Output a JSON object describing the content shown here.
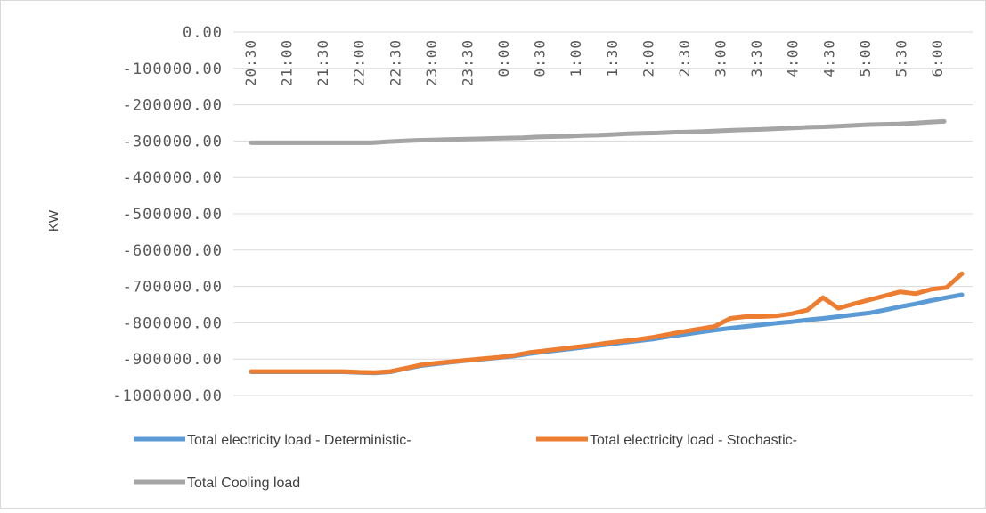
{
  "chart_data": {
    "type": "line",
    "title": "",
    "xlabel": "",
    "ylabel": "KW",
    "ylim": [
      -1000000,
      0
    ],
    "yticks": [
      0,
      -100000,
      -200000,
      -300000,
      -400000,
      -500000,
      -600000,
      -700000,
      -800000,
      -900000,
      -1000000
    ],
    "ytick_labels": [
      "0.00",
      "-100000.00",
      "-200000.00",
      "-300000.00",
      "-400000.00",
      "-500000.00",
      "-600000.00",
      "-700000.00",
      "-800000.00",
      "-900000.00",
      "-1000000.00"
    ],
    "xtick_labels": [
      "20:30",
      "21:00",
      "21:30",
      "22:00",
      "22:30",
      "23:00",
      "23:30",
      "0:00",
      "0:30",
      "1:00",
      "1:30",
      "2:00",
      "2:30",
      "3:00",
      "3:30",
      "4:00",
      "4:30",
      "5:00",
      "5:30",
      "6:00"
    ],
    "grid": true,
    "legend_position": "bottom",
    "series": [
      {
        "name": "Total electricity load - Deterministic-",
        "color": "#5B9BD5",
        "values": [
          -935000,
          -935000,
          -935000,
          -935000,
          -935000,
          -935000,
          -935000,
          -937000,
          -938000,
          -935000,
          -926000,
          -918000,
          -913000,
          -908000,
          -904000,
          -900000,
          -896000,
          -892000,
          -885000,
          -880000,
          -875000,
          -870000,
          -865000,
          -860000,
          -855000,
          -850000,
          -845000,
          -838000,
          -832000,
          -826000,
          -820000,
          -815000,
          -810000,
          -806000,
          -801000,
          -797000,
          -792000,
          -788000,
          -783000,
          -778000,
          -773000,
          -765000,
          -756000,
          -748000,
          -739000,
          -731000,
          -723000
        ]
      },
      {
        "name": "Total electricity load - Stochastic-",
        "color": "#ED7D31",
        "values": [
          -934000,
          -934000,
          -934000,
          -934000,
          -934000,
          -934000,
          -934000,
          -936000,
          -937000,
          -934000,
          -925000,
          -916000,
          -911000,
          -907000,
          -903000,
          -899000,
          -895000,
          -890000,
          -882000,
          -877000,
          -872000,
          -867000,
          -862000,
          -856000,
          -851000,
          -846000,
          -840000,
          -832000,
          -824000,
          -817000,
          -810000,
          -788000,
          -783000,
          -783000,
          -781000,
          -775000,
          -765000,
          -731000,
          -760000,
          -748000,
          -737000,
          -726000,
          -715000,
          -720000,
          -708000,
          -703000,
          -665000
        ]
      },
      {
        "name": "Total Cooling load",
        "color": "#A5A5A5",
        "values": [
          -305000,
          -305000,
          -305000,
          -305000,
          -305000,
          -305000,
          -305000,
          -305000,
          -305000,
          -302000,
          -300000,
          -298000,
          -297000,
          -296000,
          -295000,
          -294000,
          -293000,
          -292000,
          -291000,
          -289000,
          -288000,
          -287000,
          -285000,
          -284000,
          -282000,
          -280000,
          -279000,
          -278000,
          -276000,
          -275000,
          -274000,
          -272000,
          -270000,
          -269000,
          -268000,
          -266000,
          -264000,
          -262000,
          -261000,
          -259000,
          -257000,
          -255000,
          -254000,
          -253000,
          -251000,
          -248000,
          -246000
        ]
      }
    ]
  }
}
